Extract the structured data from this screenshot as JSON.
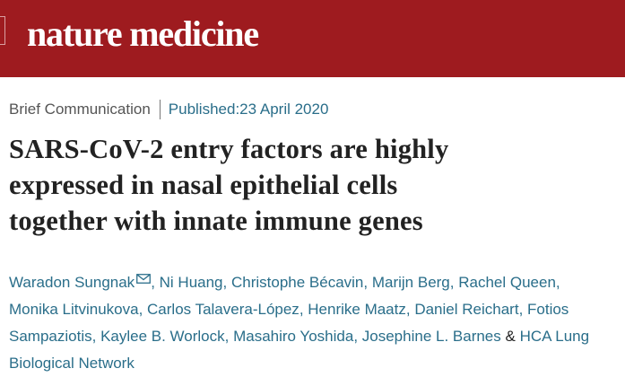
{
  "header": {
    "logo_text": "nature medicine",
    "brand_color": "#9e1b1f"
  },
  "article": {
    "type": "Brief Communication",
    "published_label": "Published: ",
    "published_date": "23 April 2020",
    "title_lines": [
      "SARS-CoV-2 entry factors are highly",
      "expressed in nasal epithelial cells",
      "together with innate immune genes"
    ]
  },
  "authors": {
    "list": [
      "Waradon Sungnak",
      "Ni Huang",
      "Christophe Bécavin",
      "Marijn Berg",
      "Rachel Queen",
      "Monika Litvinukova",
      "Carlos Talavera-López",
      "Henrike Maatz",
      "Daniel Reichart",
      "Fotios",
      "Sampaziotis",
      "Kaylee B. Worlock",
      "Masahiro Yoshida",
      "Josephine L. Barnes",
      "HCA Lung",
      "Biological Network"
    ],
    "separator": ", ",
    "ampersand": " & ",
    "corresponding_icon": "mail-icon"
  }
}
